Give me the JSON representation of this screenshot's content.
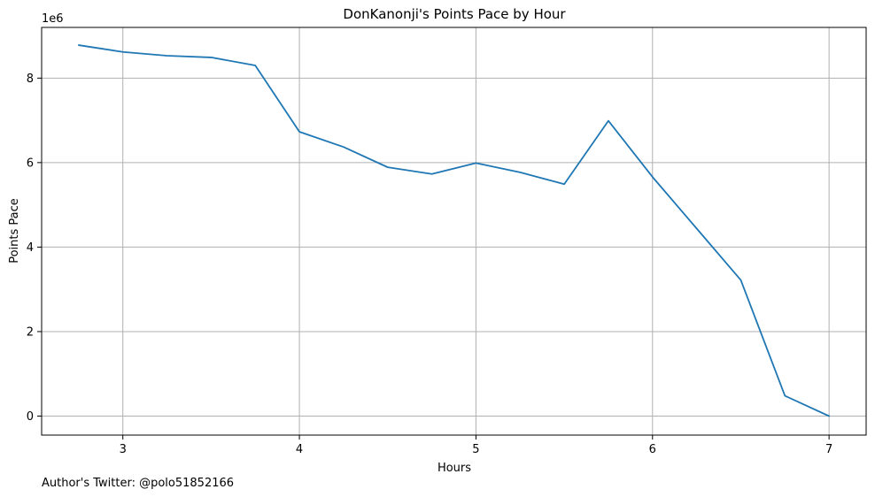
{
  "chart_data": {
    "type": "line",
    "title": "DonKanonji's Points Pace by Hour",
    "xlabel": "Hours",
    "ylabel": "Points Pace",
    "y_offset_label": "1e6",
    "y_scale": 1000000,
    "xlim": [
      2.54,
      7.21
    ],
    "ylim": [
      -450000,
      9200000
    ],
    "grid": true,
    "x_ticks": [
      {
        "value": 3,
        "label": "3"
      },
      {
        "value": 4,
        "label": "4"
      },
      {
        "value": 5,
        "label": "5"
      },
      {
        "value": 6,
        "label": "6"
      },
      {
        "value": 7,
        "label": "7"
      }
    ],
    "y_ticks": [
      {
        "value": 0,
        "label": "0"
      },
      {
        "value": 2000000,
        "label": "2"
      },
      {
        "value": 4000000,
        "label": "4"
      },
      {
        "value": 6000000,
        "label": "6"
      },
      {
        "value": 8000000,
        "label": "8"
      }
    ],
    "series": [
      {
        "color": "#1f77b4",
        "x": [
          2.75,
          3.0,
          3.25,
          3.5,
          3.75,
          4.0,
          4.25,
          4.5,
          4.75,
          5.0,
          5.25,
          5.5,
          5.75,
          6.0,
          6.25,
          6.5,
          6.75,
          7.0
        ],
        "y": [
          8780000,
          8620000,
          8530000,
          8490000,
          8300000,
          6730000,
          6370000,
          5890000,
          5730000,
          5990000,
          5770000,
          5490000,
          6990000,
          5660000,
          4440000,
          3220000,
          480000,
          0
        ]
      }
    ],
    "annotations": [
      "Author's Twitter: @polo51852166"
    ]
  },
  "colors": {
    "grid": "#b0b0b0",
    "axes": "#000000",
    "line": "#1f77b4"
  }
}
